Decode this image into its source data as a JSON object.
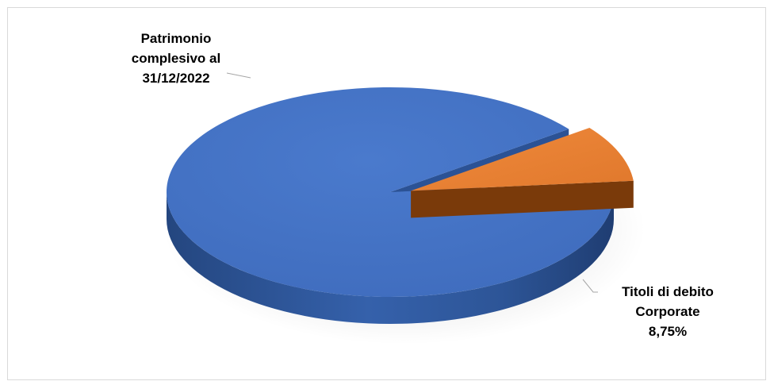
{
  "chart_data": {
    "type": "pie",
    "style": "3d",
    "slices": [
      {
        "label_lines": [
          "Patrimonio",
          "complesivo al",
          "31/12/2022"
        ],
        "value": 91.25,
        "color": "#4472c4",
        "value_label": ""
      },
      {
        "label_lines": [
          "Titoli di debito",
          "Corporate",
          "8,75%"
        ],
        "value": 8.75,
        "color": "#ed7d31",
        "value_label": "8,75%"
      }
    ],
    "legend": "none",
    "title": ""
  }
}
